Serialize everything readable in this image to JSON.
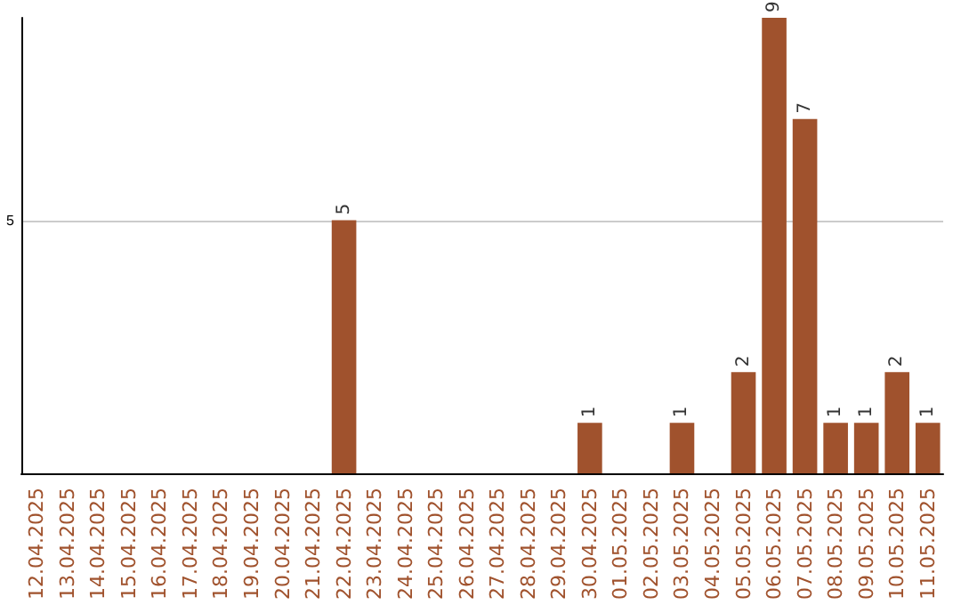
{
  "chart_data": {
    "type": "bar",
    "categories": [
      "12.04.2025",
      "13.04.2025",
      "14.04.2025",
      "15.04.2025",
      "16.04.2025",
      "17.04.2025",
      "18.04.2025",
      "19.04.2025",
      "20.04.2025",
      "21.04.2025",
      "22.04.2025",
      "23.04.2025",
      "24.04.2025",
      "25.04.2025",
      "26.04.2025",
      "27.04.2025",
      "28.04.2025",
      "29.04.2025",
      "30.04.2025",
      "01.05.2025",
      "02.05.2025",
      "03.05.2025",
      "04.05.2025",
      "05.05.2025",
      "06.05.2025",
      "07.05.2025",
      "08.05.2025",
      "09.05.2025",
      "10.05.2025",
      "11.05.2025"
    ],
    "values": [
      null,
      null,
      null,
      null,
      null,
      null,
      null,
      null,
      null,
      null,
      5,
      null,
      null,
      null,
      null,
      null,
      null,
      null,
      1,
      null,
      null,
      1,
      null,
      2,
      9,
      7,
      1,
      1,
      2,
      1
    ],
    "color": "#a0522d",
    "ylim": [
      0,
      9
    ],
    "yticks": [
      5
    ],
    "grid": "y",
    "data_labels": true
  }
}
